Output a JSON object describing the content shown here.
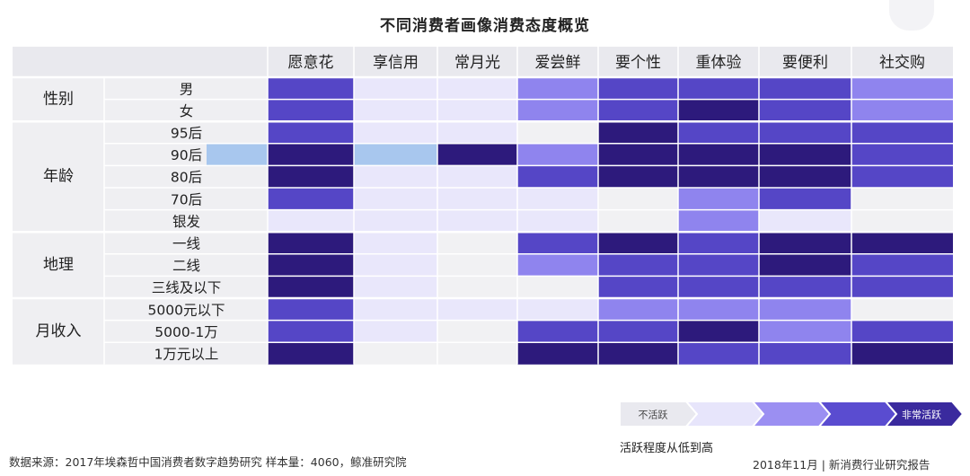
{
  "chart_data": {
    "type": "heatmap",
    "title": "不同消费者画像消费态度概览",
    "columns": [
      "愿意花",
      "享信用",
      "常月光",
      "爱尝鲜",
      "要个性",
      "重体验",
      "要便利",
      "社交购"
    ],
    "groups": [
      {
        "name": "性别",
        "rows": [
          "男",
          "女"
        ]
      },
      {
        "name": "年龄",
        "rows": [
          "95后",
          "90后",
          "80后",
          "70后",
          "银发"
        ]
      },
      {
        "name": "地理",
        "rows": [
          "一线",
          "二线",
          "三线及以下"
        ]
      },
      {
        "name": "月收入",
        "rows": [
          "5000元以下",
          "5000-1万",
          "1万元以上"
        ]
      }
    ],
    "levels": [
      [
        3,
        1,
        1,
        2,
        3,
        3,
        3,
        2
      ],
      [
        3,
        1,
        1,
        2,
        3,
        4,
        3,
        2
      ],
      [
        3,
        1,
        1,
        0,
        4,
        3,
        3,
        3
      ],
      [
        4,
        1,
        4,
        2,
        4,
        4,
        4,
        3
      ],
      [
        4,
        1,
        1,
        3,
        4,
        4,
        4,
        3
      ],
      [
        3,
        1,
        1,
        1,
        0,
        2,
        3,
        0
      ],
      [
        1,
        1,
        1,
        1,
        0,
        2,
        1,
        0
      ],
      [
        4,
        1,
        0,
        3,
        4,
        3,
        4,
        4
      ],
      [
        4,
        1,
        0,
        2,
        3,
        3,
        4,
        3
      ],
      [
        4,
        1,
        0,
        0,
        3,
        3,
        3,
        3
      ],
      [
        3,
        1,
        1,
        1,
        2,
        2,
        2,
        0
      ],
      [
        3,
        1,
        0,
        3,
        3,
        4,
        2,
        3
      ],
      [
        4,
        0,
        0,
        4,
        4,
        3,
        3,
        4
      ]
    ],
    "level_colors": [
      "#f1f1f3",
      "#e9e7fb",
      "#8f84ee",
      "#5546c6",
      "#2d1a7c"
    ],
    "highlight_color": "#a8c7ee",
    "highlight_row": "90后",
    "legend": {
      "low_label": "不活跃",
      "high_label": "非常活跃",
      "caption": "活跃程度从低到高",
      "colors": [
        "#e9e9ef",
        "#e7e5fb",
        "#9b8ff2",
        "#5a4cd0",
        "#3a2a9e"
      ]
    }
  },
  "footer": {
    "source": "数据来源：2017年埃森哲中国消费者数字趋势研究 样本量：4060，鲸准研究院",
    "report": "2018年11月 | 新消费行业研究报告"
  },
  "colors": {
    "header_bg": "#e9e9ee",
    "label_bg": "#efeff2",
    "grid_line": "#ffffff"
  }
}
